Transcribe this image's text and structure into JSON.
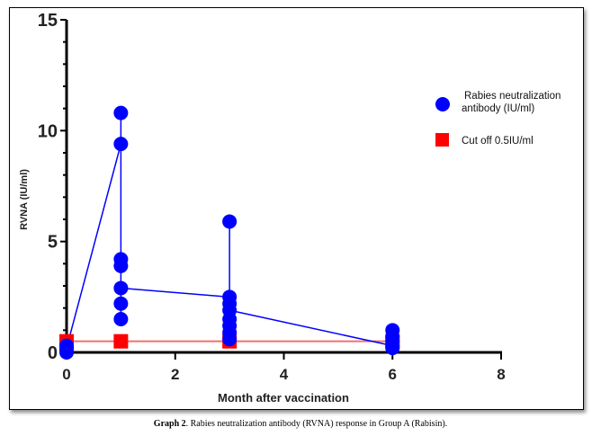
{
  "chart_data": {
    "type": "scatter",
    "title": "",
    "xlabel": "Month after vaccination",
    "ylabel": "RVNA (IU/ml)",
    "xlim": [
      0,
      8
    ],
    "ylim": [
      0,
      15
    ],
    "x_ticks": [
      "0",
      "2",
      "4",
      "6",
      "8"
    ],
    "y_ticks": [
      "0",
      "5",
      "10",
      "15"
    ],
    "legend_position": "right",
    "series": [
      {
        "name": "Rabies neutralization antibody (IU/ml)",
        "marker": "circle",
        "color": "#0000ff",
        "points": [
          {
            "x": 0,
            "y": 0.3
          },
          {
            "x": 0,
            "y": 0.2
          },
          {
            "x": 0,
            "y": 0.1
          },
          {
            "x": 0,
            "y": 0.0
          },
          {
            "x": 1,
            "y": 10.8
          },
          {
            "x": 1,
            "y": 9.4
          },
          {
            "x": 1,
            "y": 4.2
          },
          {
            "x": 1,
            "y": 3.9
          },
          {
            "x": 1,
            "y": 2.9
          },
          {
            "x": 1,
            "y": 2.2
          },
          {
            "x": 1,
            "y": 1.5
          },
          {
            "x": 3,
            "y": 5.9
          },
          {
            "x": 3,
            "y": 2.5
          },
          {
            "x": 3,
            "y": 2.2
          },
          {
            "x": 3,
            "y": 1.9
          },
          {
            "x": 3,
            "y": 1.5
          },
          {
            "x": 3,
            "y": 1.2
          },
          {
            "x": 3,
            "y": 0.9
          },
          {
            "x": 3,
            "y": 0.6
          },
          {
            "x": 6,
            "y": 1.0
          },
          {
            "x": 6,
            "y": 0.7
          },
          {
            "x": 6,
            "y": 0.5
          },
          {
            "x": 6,
            "y": 0.3
          },
          {
            "x": 6,
            "y": 0.2
          }
        ],
        "range_lines": [
          {
            "x": 0,
            "min": 0.0,
            "max": 0.3
          },
          {
            "x": 1,
            "min": 1.5,
            "max": 10.8
          },
          {
            "x": 3,
            "min": 0.6,
            "max": 5.9
          },
          {
            "x": 6,
            "min": 0.2,
            "max": 1.0
          }
        ],
        "connecting_line": [
          {
            "x": 0,
            "y": 0.2
          },
          {
            "x": 1,
            "y": 9.4
          }
        ],
        "connecting_line_2": [
          {
            "x": 1,
            "y": 2.9
          },
          {
            "x": 3,
            "y": 2.5
          }
        ],
        "connecting_line_3": [
          {
            "x": 3,
            "y": 1.9
          },
          {
            "x": 6,
            "y": 0.3
          }
        ]
      },
      {
        "name": "Cut off 0.5IU/ml",
        "marker": "square",
        "color": "#ff0000",
        "points": [
          {
            "x": 0,
            "y": 0.5
          },
          {
            "x": 1,
            "y": 0.5
          },
          {
            "x": 3,
            "y": 0.5
          },
          {
            "x": 6,
            "y": 0.5
          }
        ]
      }
    ]
  },
  "legend": {
    "item1_line1": "Rabies neutralization",
    "item1_line2": "antibody (IU/ml)",
    "item2": "Cut off 0.5IU/ml"
  },
  "caption": {
    "label": "Graph 2",
    "text": ". Rabies neutralization antibody (RVNA) response in Group A (Rabisin)."
  }
}
